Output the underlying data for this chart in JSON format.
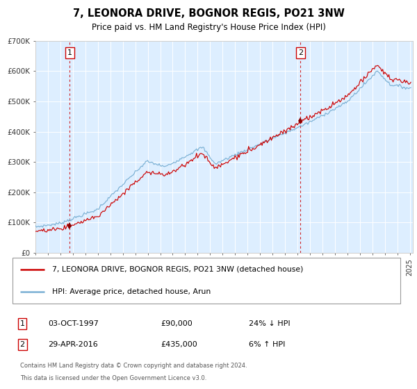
{
  "title": "7, LEONORA DRIVE, BOGNOR REGIS, PO21 3NW",
  "subtitle": "Price paid vs. HM Land Registry's House Price Index (HPI)",
  "legend_label_1": "7, LEONORA DRIVE, BOGNOR REGIS, PO21 3NW (detached house)",
  "legend_label_2": "HPI: Average price, detached house, Arun",
  "transaction_1_date": "03-OCT-1997",
  "transaction_1_price": 90000,
  "transaction_1_hpi": "24% ↓ HPI",
  "transaction_2_date": "29-APR-2016",
  "transaction_2_price": 435000,
  "transaction_2_hpi": "6% ↑ HPI",
  "footer_line1": "Contains HM Land Registry data © Crown copyright and database right 2024.",
  "footer_line2": "This data is licensed under the Open Government Licence v3.0.",
  "hpi_color": "#7ab0d4",
  "property_color": "#cc0000",
  "dashed_line_color": "#cc0000",
  "plot_bg": "#ddeeff",
  "marker_color": "#880000",
  "ylim": [
    0,
    700000
  ],
  "yticks": [
    0,
    100000,
    200000,
    300000,
    400000,
    500000,
    600000,
    700000
  ],
  "ytick_labels": [
    "£0",
    "£100K",
    "£200K",
    "£300K",
    "£400K",
    "£500K",
    "£600K",
    "£700K"
  ]
}
